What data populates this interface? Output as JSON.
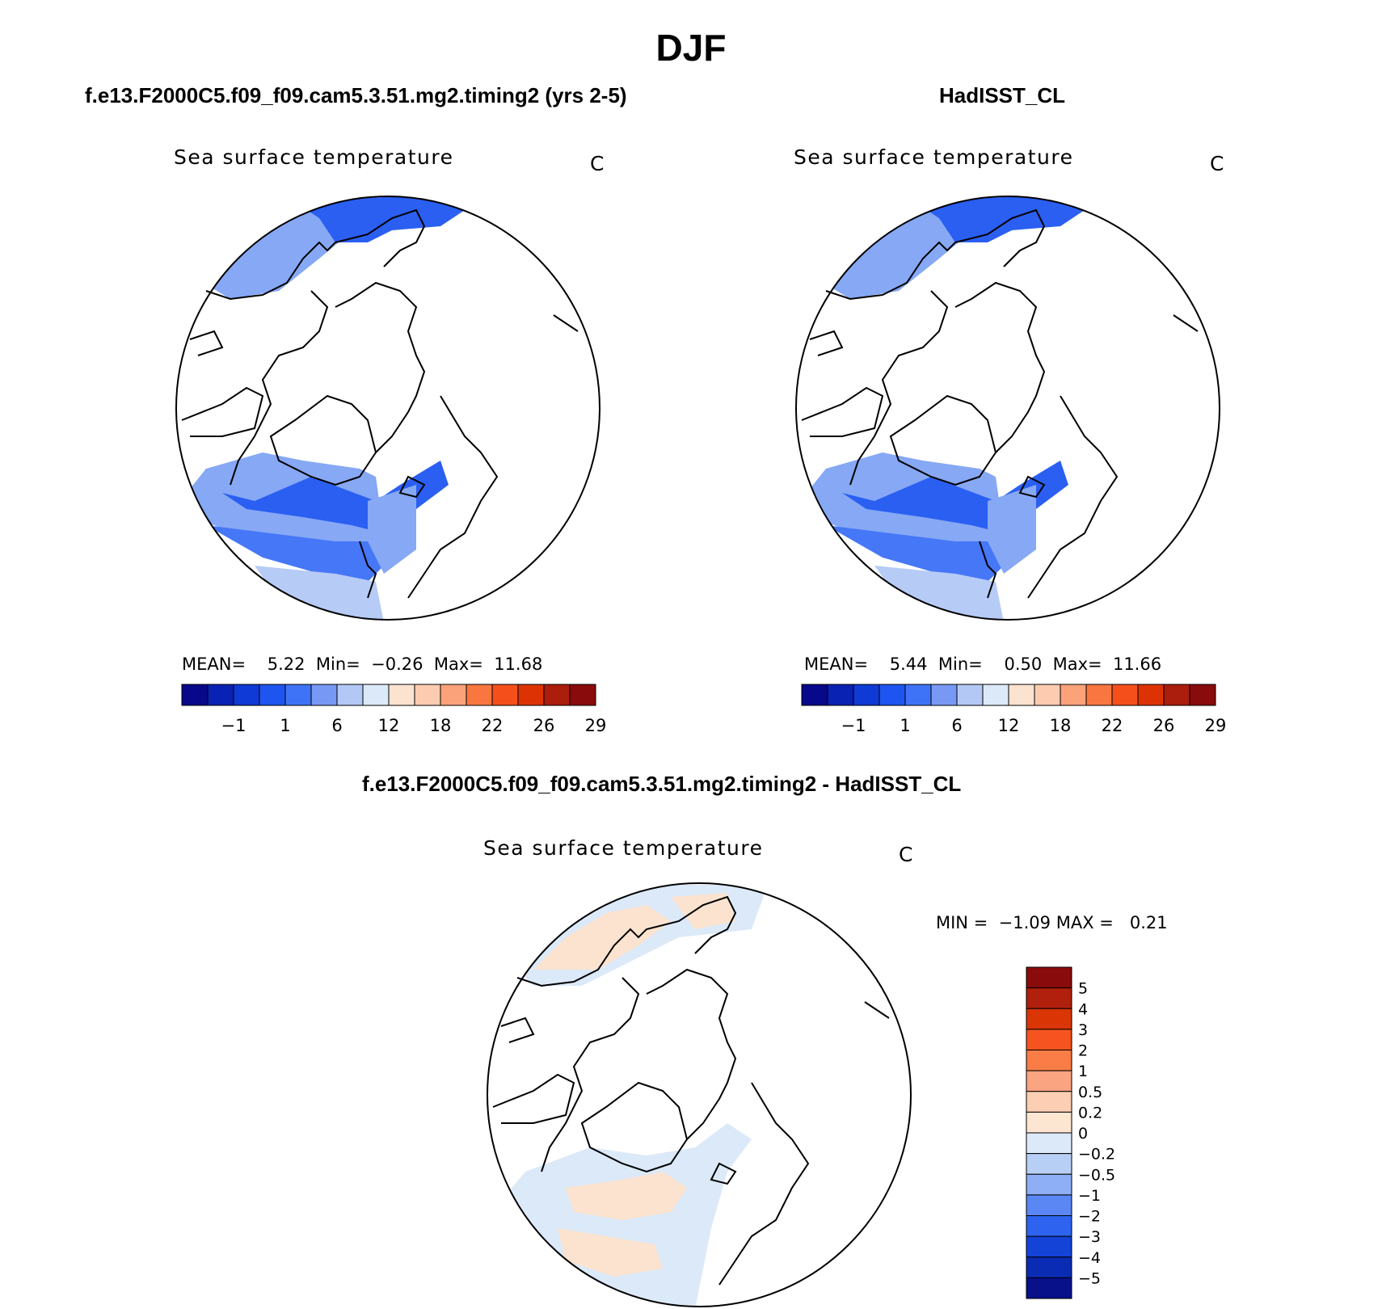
{
  "title": "DJF",
  "panels": [
    {
      "case_title": "f.e13.F2000C5.f09_f09.cam5.3.51.mg2.timing2 (yrs 2-5)",
      "plot_title": "Sea surface temperature",
      "units": "C",
      "stats": {
        "mean_label": "MEAN=",
        "mean": "5.22",
        "min_label": "Min=",
        "min": "−0.26",
        "max_label": "Max=",
        "max": "11.68"
      }
    },
    {
      "case_title": "HadISST_CL",
      "plot_title": "Sea surface temperature",
      "units": "C",
      "stats": {
        "mean_label": "MEAN=",
        "mean": "5.44",
        "min_label": "Min=",
        "min": "0.50",
        "max_label": "Max=",
        "max": "11.66"
      }
    },
    {
      "case_title": "f.e13.F2000C5.f09_f09.cam5.3.51.mg2.timing2 - HadISST_CL",
      "plot_title": "Sea surface temperature",
      "units": "C",
      "stats": {
        "min_label": "MIN =",
        "min": "−1.09",
        "max_label": "MAX =",
        "max": "0.21"
      }
    }
  ],
  "abs_colorbar": {
    "colors": [
      "#08088a",
      "#0a22b4",
      "#0f3ad6",
      "#1e55f0",
      "#3f73f7",
      "#7799f5",
      "#b3c8f5",
      "#dce9f8",
      "#fbe3cf",
      "#fccbb0",
      "#fba27a",
      "#f97640",
      "#f5501c",
      "#dd3304",
      "#ab1d0c",
      "#8a0b0b"
    ],
    "tick_labels": [
      "−1",
      "1",
      "6",
      "12",
      "18",
      "22",
      "26",
      "29"
    ]
  },
  "diff_colorbar": {
    "colors": [
      "#8a0b0b",
      "#b0200d",
      "#da3505",
      "#f55420",
      "#fa7c46",
      "#fba482",
      "#fcceb3",
      "#fce6d2",
      "#dce9f8",
      "#b8cff5",
      "#8eaef5",
      "#5b87f5",
      "#2e63f0",
      "#1443d8",
      "#0a2cb4",
      "#08108a"
    ],
    "tick_labels": [
      "5",
      "4",
      "3",
      "2",
      "1",
      "0.5",
      "0.2",
      "0",
      "−0.2",
      "−0.5",
      "−1",
      "−2",
      "−3",
      "−4",
      "−5"
    ]
  },
  "map_colors": {
    "deep": "#2a5ff2",
    "mid": "#4677f7",
    "light": "#86a8f5",
    "pale": "#b6cbf6",
    "diff_blue": "#dce9f8",
    "diff_orange": "#fbe3cf"
  }
}
